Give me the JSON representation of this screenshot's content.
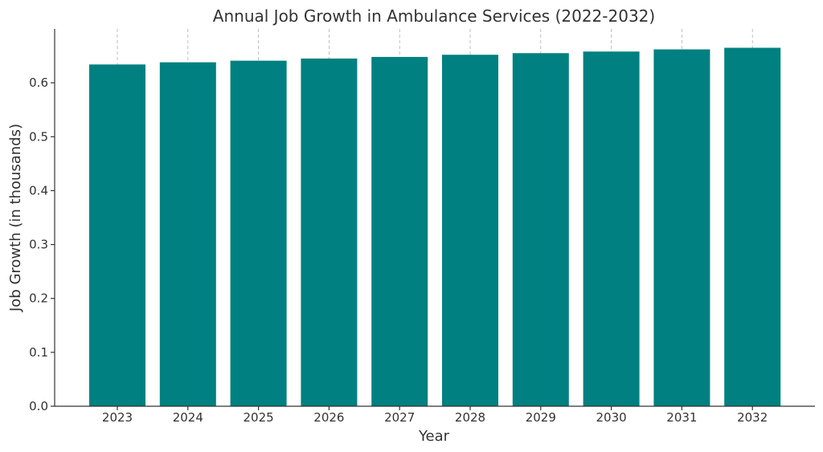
{
  "chart_data": {
    "type": "bar",
    "title": "Annual Job Growth in Ambulance Services (2022-2032)",
    "xlabel": "Year",
    "ylabel": "Job Growth (in thousands)",
    "categories": [
      "2023",
      "2024",
      "2025",
      "2026",
      "2027",
      "2028",
      "2029",
      "2030",
      "2031",
      "2032"
    ],
    "values": [
      0.634,
      0.638,
      0.641,
      0.645,
      0.648,
      0.652,
      0.655,
      0.658,
      0.662,
      0.665
    ],
    "ylim": [
      0,
      0.7
    ],
    "yticks": [
      "0.0",
      "0.1",
      "0.2",
      "0.3",
      "0.4",
      "0.5",
      "0.6"
    ],
    "grid": "vertical dashed",
    "bar_color": "#008080",
    "grid_color": "#b0b0b0"
  }
}
